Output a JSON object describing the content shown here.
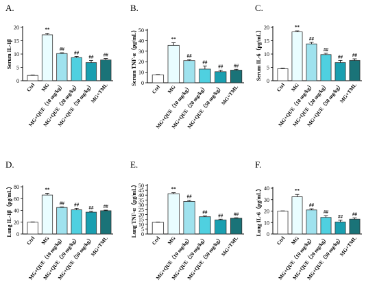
{
  "figure": {
    "panels": [
      "A.",
      "B.",
      "C.",
      "D.",
      "E.",
      "F."
    ]
  },
  "colors": {
    "bars": [
      "#ffffff",
      "#e9fdff",
      "#9fe2ee",
      "#4fd0e0",
      "#1a9fb0",
      "#1a7378"
    ],
    "edge": "#333333"
  },
  "chart_data": [
    {
      "type": "bar",
      "panel": "A.",
      "ylabel": "Serum IL-1β",
      "categories": [
        "Ctrl",
        "MG",
        "MG+QUE（10 mg/kg）",
        "MG+QUE（20 mg/kg）",
        "MG+QUE（50 mg/kg）",
        "MG+TML"
      ],
      "values": [
        2.0,
        17.2,
        10.2,
        8.7,
        6.8,
        7.8
      ],
      "errors": [
        0.1,
        0.6,
        0.3,
        0.4,
        0.8,
        0.5
      ],
      "significance": [
        "",
        "**",
        "##",
        "##",
        "##",
        "##"
      ],
      "ylim": [
        0,
        20
      ],
      "yticks": [
        0,
        5,
        10,
        15,
        20
      ]
    },
    {
      "type": "bar",
      "panel": "B.",
      "ylabel": "Serum TNF-α（pg/mL）",
      "categories": [
        "Ctrl",
        "MG",
        "MG+QUE（10 mg/kg）",
        "MG+QUE（20 mg/kg）",
        "MG+QUE（50 mg/kg）",
        "MG+TML"
      ],
      "values": [
        7.5,
        35.5,
        21.0,
        13.0,
        10.5,
        12.0
      ],
      "errors": [
        0.3,
        2.5,
        1.0,
        3.0,
        1.5,
        0.8
      ],
      "significance": [
        "",
        "**",
        "##",
        "##",
        "##",
        "##"
      ],
      "ylim": [
        0,
        50
      ],
      "yticks": [
        0,
        10,
        20,
        30,
        40,
        50
      ]
    },
    {
      "type": "bar",
      "panel": "C.",
      "ylabel": "Serum IL-6（pg/mL）",
      "categories": [
        "Ctrl",
        "MG",
        "MG+QUE（10 mg/kg）",
        "MG+QUE（20 mg/kg）",
        "MG+QUE（50 mg/kg）",
        "MG+TML"
      ],
      "values": [
        4.5,
        18.3,
        13.8,
        9.8,
        6.8,
        7.6
      ],
      "errors": [
        0.2,
        0.4,
        0.6,
        0.5,
        0.8,
        0.6
      ],
      "significance": [
        "",
        "**",
        "##",
        "##",
        "##",
        "##"
      ],
      "ylim": [
        0,
        20
      ],
      "yticks": [
        0,
        5,
        10,
        15,
        20
      ]
    },
    {
      "type": "bar",
      "panel": "D.",
      "ylabel": "Lung IL-1β（pg/mL）",
      "categories": [
        "Ctrl",
        "MG",
        "MG+QUE（10 mg/kg）",
        "MG+QUE（20 mg/kg）",
        "MG+QUE（50 mg/kg）",
        "MG+TML"
      ],
      "values": [
        20.0,
        66.0,
        45.0,
        41.0,
        37.0,
        39.5
      ],
      "errors": [
        0.5,
        3.0,
        1.0,
        2.5,
        1.5,
        1.0
      ],
      "significance": [
        "",
        "**",
        "##",
        "##",
        "##",
        "##"
      ],
      "ylim": [
        0,
        80
      ],
      "yticks": [
        0,
        20,
        40,
        60,
        80
      ]
    },
    {
      "type": "bar",
      "panel": "E.",
      "ylabel": "Lung TNF-α（pg/mL）",
      "categories": [
        "Ctrl",
        "MG",
        "MG+QUE（10 mg/kg）",
        "MG+QUE（20 mg/kg）",
        "MG+QUE（50 mg/kg）",
        "MG+TML"
      ],
      "values": [
        12.0,
        41.5,
        33.5,
        17.8,
        14.5,
        16.2
      ],
      "errors": [
        0.3,
        1.0,
        1.2,
        0.7,
        0.8,
        0.5
      ],
      "significance": [
        "",
        "**",
        "##",
        "##",
        "##",
        "##"
      ],
      "ylim": [
        0,
        50
      ],
      "yticks": [
        0,
        5,
        10,
        15,
        20,
        25,
        30,
        35,
        40,
        45,
        50
      ]
    },
    {
      "type": "bar",
      "panel": "F.",
      "ylabel": "Lung IL-6（pg/mL）",
      "categories": [
        "Ctrl",
        "MG",
        "MG+QUE（10 mg/kg）",
        "MG+QUE（20 mg/kg）",
        "MG+QUE（50 mg/kg）",
        "MG+TML"
      ],
      "values": [
        20.0,
        32.5,
        21.0,
        14.5,
        10.5,
        13.0
      ],
      "errors": [
        0.2,
        2.0,
        1.0,
        1.5,
        1.5,
        1.0
      ],
      "significance": [
        "",
        "**",
        "##",
        "##",
        "##",
        "##"
      ],
      "ylim": [
        0,
        40
      ],
      "yticks": [
        0,
        10,
        20,
        30,
        40
      ]
    }
  ]
}
